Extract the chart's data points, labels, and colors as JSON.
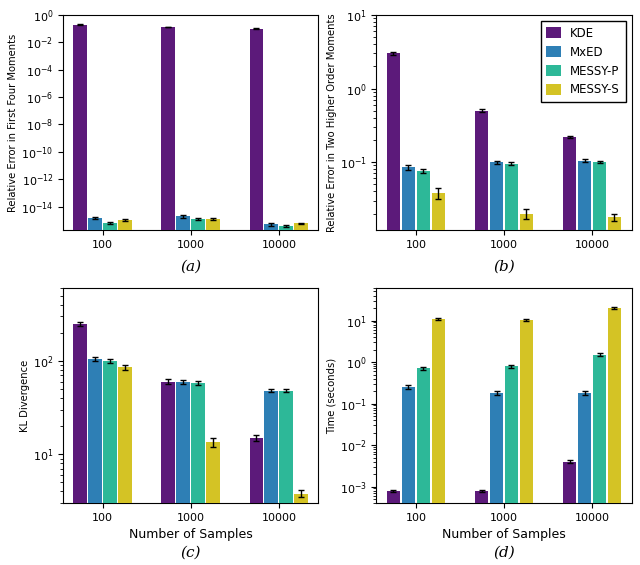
{
  "colors": {
    "KDE": "#5c1a7a",
    "MxED": "#2e7fb5",
    "MESSY-P": "#2db898",
    "MESSY-S": "#d4c325"
  },
  "methods": [
    "KDE",
    "MxED",
    "MESSY-P",
    "MESSY-S"
  ],
  "panel_a": {
    "ylabel": "Relative Error in First Four Moments",
    "means": {
      "KDE": [
        0.2,
        0.13,
        0.1
      ],
      "MxED": [
        1.5e-15,
        2e-15,
        5e-16
      ],
      "MESSY-P": [
        6e-16,
        1.2e-15,
        4e-16
      ],
      "MESSY-S": [
        1e-15,
        1.3e-15,
        6e-16
      ]
    },
    "errs": {
      "KDE": [
        0.008,
        0.005,
        0.004
      ],
      "MxED": [
        2e-16,
        5e-16,
        1e-16
      ],
      "MESSY-P": [
        1e-16,
        2e-16,
        5e-17
      ],
      "MESSY-S": [
        1.5e-16,
        2e-16,
        8e-17
      ]
    },
    "ylim": [
      2e-16,
      1.0
    ]
  },
  "panel_b": {
    "ylabel": "Relative Error in Two Higher Order Moments",
    "means": {
      "KDE": [
        3.0,
        0.5,
        0.22
      ],
      "MxED": [
        0.085,
        0.1,
        0.105
      ],
      "MESSY-P": [
        0.075,
        0.095,
        0.1
      ],
      "MESSY-S": [
        0.038,
        0.02,
        0.018
      ]
    },
    "errs": {
      "KDE": [
        0.12,
        0.02,
        0.008
      ],
      "MxED": [
        0.006,
        0.005,
        0.004
      ],
      "MESSY-P": [
        0.005,
        0.004,
        0.003
      ],
      "MESSY-S": [
        0.006,
        0.003,
        0.002
      ]
    },
    "ylim": [
      0.012,
      10.0
    ]
  },
  "panel_c": {
    "ylabel": "KL Divergence",
    "means": {
      "KDE": [
        250.0,
        60.0,
        15.0
      ],
      "MxED": [
        105.0,
        60.0,
        48.0
      ],
      "MESSY-P": [
        100.0,
        58.0,
        48.0
      ],
      "MESSY-S": [
        85.0,
        13.5,
        3.8
      ]
    },
    "errs": {
      "KDE": [
        12.0,
        4.0,
        1.2
      ],
      "MxED": [
        5.0,
        3.0,
        2.0
      ],
      "MESSY-P": [
        4.0,
        3.0,
        2.0
      ],
      "MESSY-S": [
        5.0,
        1.5,
        0.35
      ]
    },
    "ylim": [
      3.0,
      600.0
    ]
  },
  "panel_d": {
    "ylabel": "Time (seconds)",
    "means": {
      "KDE": [
        0.0008,
        0.0008,
        0.004
      ],
      "MxED": [
        0.25,
        0.18,
        0.18
      ],
      "MESSY-P": [
        0.7,
        0.8,
        1.5
      ],
      "MESSY-S": [
        11.0,
        10.5,
        20.0
      ]
    },
    "errs": {
      "KDE": [
        5e-05,
        5e-05,
        0.0003
      ],
      "MxED": [
        0.03,
        0.02,
        0.02
      ],
      "MESSY-P": [
        0.06,
        0.07,
        0.12
      ],
      "MESSY-S": [
        0.6,
        0.6,
        1.5
      ]
    },
    "ylim": [
      0.0004,
      60.0
    ]
  },
  "xlabel": "Number of Samples",
  "bar_width": 0.17,
  "group_positions": [
    0,
    1,
    2
  ],
  "xtick_labels": [
    "100",
    "1000",
    "10000"
  ]
}
